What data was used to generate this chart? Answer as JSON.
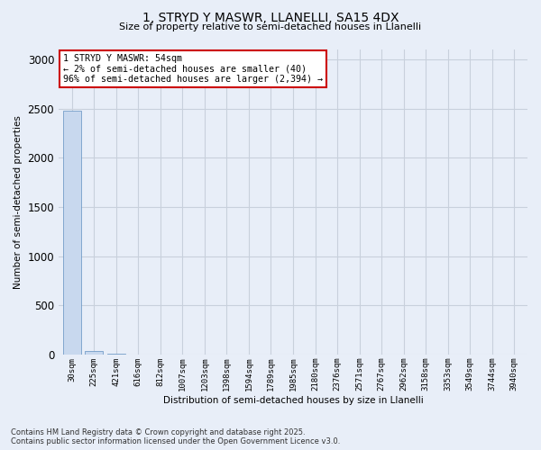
{
  "title_line1": "1, STRYD Y MASWR, LLANELLI, SA15 4DX",
  "title_line2": "Size of property relative to semi-detached houses in Llanelli",
  "xlabel": "Distribution of semi-detached houses by size in Llanelli",
  "ylabel": "Number of semi-detached properties",
  "categories": [
    "30sqm",
    "225sqm",
    "421sqm",
    "616sqm",
    "812sqm",
    "1007sqm",
    "1203sqm",
    "1398sqm",
    "1594sqm",
    "1789sqm",
    "1985sqm",
    "2180sqm",
    "2376sqm",
    "2571sqm",
    "2767sqm",
    "2962sqm",
    "3158sqm",
    "3353sqm",
    "3549sqm",
    "3744sqm",
    "3940sqm"
  ],
  "values": [
    2480,
    40,
    5,
    2,
    1,
    1,
    1,
    0,
    0,
    1,
    0,
    0,
    1,
    0,
    0,
    0,
    0,
    0,
    0,
    0,
    0
  ],
  "bar_color": "#c8d8ee",
  "bar_edge_color": "#6090c0",
  "annotation_title": "1 STRYD Y MASWR: 54sqm",
  "annotation_line2": "← 2% of semi-detached houses are smaller (40)",
  "annotation_line3": "96% of semi-detached houses are larger (2,394) →",
  "annotation_box_color": "#cc0000",
  "ylim": [
    0,
    3100
  ],
  "yticks": [
    0,
    500,
    1000,
    1500,
    2000,
    2500,
    3000
  ],
  "footer_line1": "Contains HM Land Registry data © Crown copyright and database right 2025.",
  "footer_line2": "Contains public sector information licensed under the Open Government Licence v3.0.",
  "bg_color": "#e8eef8",
  "plot_bg_color": "#e8eef8",
  "grid_color": "#c8d0dc"
}
